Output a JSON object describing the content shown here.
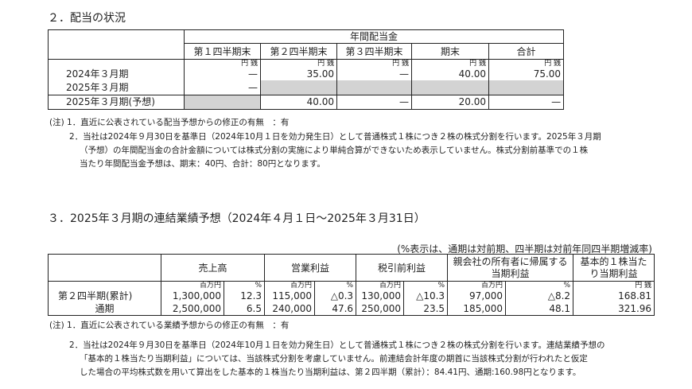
{
  "dividend": {
    "title": "２．配当の状況",
    "group_header": "年間配当金",
    "columns": [
      "第１四半期末",
      "第２四半期末",
      "第３四半期末",
      "期末",
      "合計"
    ],
    "unit": "円 銭",
    "rows": [
      {
        "label": "2024年３月期",
        "values": [
          "—",
          "35.00",
          "—",
          "40.00",
          "75.00"
        ]
      },
      {
        "label": "2025年３月期",
        "values": [
          "—",
          "",
          "",
          "",
          ""
        ]
      },
      {
        "label": "2025年３月期(予想)",
        "values": [
          "",
          "40.00",
          "—",
          "20.00",
          "—"
        ]
      }
    ],
    "notes": [
      "(注) 1．直近に公表されている配当予想からの修正の有無　：有",
      "2．当社は2024年９月30日を基準日（2024年10月１日を効力発生日）として普通株式１株につき２株の株式分割を行います。2025年３月期",
      "（予想）の年間配当金の合計金額については株式分割の実施により単純合算ができないため表示していません。株式分割前基準での１株",
      "当たり年間配当金予想は、期末：40円、合計：80円となります。"
    ]
  },
  "forecast": {
    "title": "３．2025年３月期の連結業績予想（2024年４月１日～2025年３月31日）",
    "pct_note": "(%表示は、通期は対前期、四半期は対前年同四半期増減率)",
    "columns": [
      "売上高",
      "営業利益",
      "税引前利益",
      "親会社の所有者に帰属する当期利益",
      "基本的１株当たり当期利益"
    ],
    "units": [
      "百万円",
      "%",
      "百万円",
      "%",
      "百万円",
      "%",
      "百万円",
      "%",
      "円 銭"
    ],
    "rows": [
      {
        "label": "第２四半期(累計)",
        "values": [
          "1,300,000",
          "12.3",
          "115,000",
          "△0.3",
          "130,000",
          "△10.3",
          "97,000",
          "△8.2",
          "168.81"
        ]
      },
      {
        "label": "通期",
        "values": [
          "2,500,000",
          "6.5",
          "240,000",
          "47.6",
          "250,000",
          "23.5",
          "185,000",
          "48.1",
          "321.96"
        ]
      }
    ],
    "notes": [
      "(注) 1．直近に公表されている業績予想からの修正の有無　：有",
      "2．当社は2024年９月30日を基準日（2024年10月１日を効力発生日）として普通株式１株につき２株の株式分割を行います。連結業績予想の",
      "「基本的１株当たり当期利益」については、当該株式分割を考慮していません。前連結会計年度の期首に当該株式分割が行われたと仮定",
      "した場合の平均株式数を用いて算出をした基本的１株当たり当期利益は、第２四半期（累計）：84.41円、通期:160.98円となります。"
    ]
  }
}
